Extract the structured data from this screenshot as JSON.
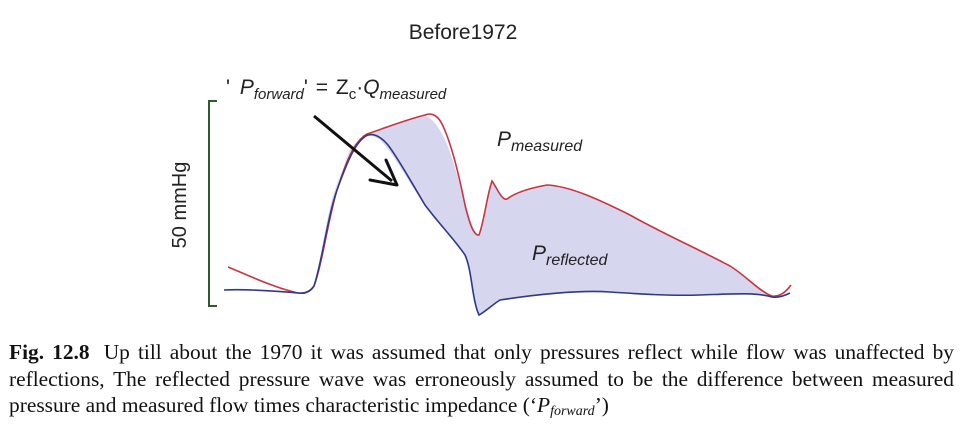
{
  "figure": {
    "title": "Before1972",
    "formula": {
      "open_quote": "'",
      "lhs_main": "P",
      "lhs_sub": "forward",
      "close_quote": "'",
      "equals": "=",
      "z_main": "Z",
      "z_sub": "c",
      "dot": "·",
      "q_main": "Q",
      "q_sub": "measured"
    },
    "scale_bar_label": "50 mmHg",
    "label_measured": {
      "main": "P",
      "sub": "measured"
    },
    "label_reflected": {
      "main": "P",
      "sub": "reflected"
    },
    "colors": {
      "measured_curve": "#c8343f",
      "forward_curve": "#2e3a86",
      "reflected_fill": "#d6d6ee",
      "scale_bar": "#2f5a2f",
      "arrow": "#111111"
    }
  },
  "caption": {
    "label": "Fig. 12.8",
    "text_part1": "Up till about the 1970 it was assumed that only pressures reflect while flow was unaffected by reflections, The reflected pressure wave was erroneously assumed to be the difference between measured pressure and measured flow times characteristic impedance (‘",
    "p_main": "P",
    "p_sub": "forward",
    "text_part2": "’)"
  }
}
